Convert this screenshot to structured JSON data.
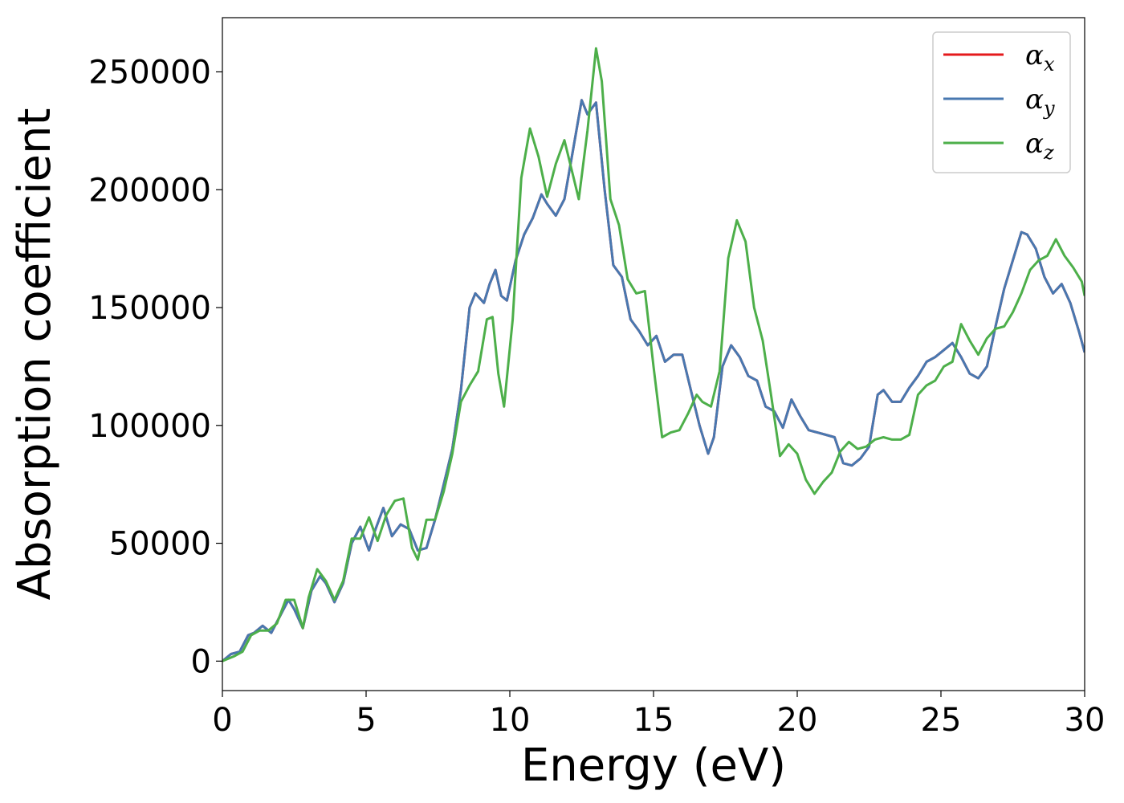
{
  "chart_data": {
    "type": "line",
    "xlabel": "Energy (eV)",
    "ylabel": "Absorption coefficient",
    "xlim": [
      0,
      30
    ],
    "ylim": [
      -12500,
      273000
    ],
    "xticks": [
      0,
      5,
      10,
      15,
      20,
      25,
      30
    ],
    "xtick_labels": [
      "0",
      "5",
      "10",
      "15",
      "20",
      "25",
      "30"
    ],
    "yticks": [
      0,
      50000,
      100000,
      150000,
      200000,
      250000
    ],
    "ytick_labels": [
      "0",
      "50000",
      "100000",
      "150000",
      "200000",
      "250000"
    ],
    "grid": false,
    "legend_position": "top-right",
    "series": [
      {
        "name": "α",
        "subscript": "x",
        "color": "#e41a1c",
        "x": [
          0,
          0.3,
          0.6,
          0.9,
          1.1,
          1.4,
          1.7,
          2.0,
          2.3,
          2.5,
          2.8,
          3.1,
          3.4,
          3.6,
          3.9,
          4.2,
          4.5,
          4.8,
          5.1,
          5.3,
          5.6,
          5.9,
          6.2,
          6.5,
          6.8,
          7.1,
          7.4,
          7.7,
          8.0,
          8.3,
          8.6,
          8.8,
          9.1,
          9.3,
          9.5,
          9.7,
          9.9,
          10.2,
          10.5,
          10.8,
          11.1,
          11.3,
          11.6,
          11.9,
          12.2,
          12.5,
          12.7,
          13.0,
          13.3,
          13.6,
          13.9,
          14.2,
          14.5,
          14.8,
          15.1,
          15.4,
          15.7,
          16.0,
          16.3,
          16.6,
          16.9,
          17.1,
          17.4,
          17.7,
          18.0,
          18.3,
          18.6,
          18.9,
          19.2,
          19.5,
          19.8,
          20.1,
          20.4,
          20.7,
          21.0,
          21.3,
          21.6,
          21.9,
          22.2,
          22.5,
          22.8,
          23.0,
          23.3,
          23.6,
          23.9,
          24.2,
          24.5,
          24.8,
          25.1,
          25.4,
          25.7,
          26.0,
          26.3,
          26.6,
          26.9,
          27.2,
          27.5,
          27.8,
          28.0,
          28.3,
          28.6,
          28.9,
          29.2,
          29.5,
          29.8,
          30.0
        ],
        "y": [
          0,
          3000,
          4000,
          11000,
          12000,
          15000,
          12000,
          19000,
          26000,
          22000,
          14000,
          30000,
          36000,
          33000,
          25000,
          33000,
          50000,
          57000,
          47000,
          55000,
          65000,
          53000,
          58000,
          56000,
          47000,
          48000,
          60000,
          75000,
          90000,
          115000,
          150000,
          156000,
          152000,
          160000,
          166000,
          155000,
          153000,
          170000,
          181000,
          188000,
          198000,
          194000,
          189000,
          196000,
          217000,
          238000,
          232000,
          237000,
          200000,
          168000,
          163000,
          145000,
          140000,
          134000,
          138000,
          127000,
          130000,
          130000,
          115000,
          100000,
          88000,
          95000,
          125000,
          134000,
          129000,
          121000,
          119000,
          108000,
          106000,
          99000,
          111000,
          104000,
          98000,
          97000,
          96000,
          95000,
          84000,
          83000,
          86000,
          91000,
          113000,
          115000,
          110000,
          110000,
          116000,
          121000,
          127000,
          129000,
          132000,
          135000,
          129000,
          122000,
          120000,
          125000,
          142000,
          158000,
          170000,
          182000,
          181000,
          175000,
          163000,
          156000,
          160000,
          152000,
          140000,
          131000
        ]
      },
      {
        "name": "α",
        "subscript": "y",
        "color": "#4878b0",
        "x": [
          0,
          0.3,
          0.6,
          0.9,
          1.1,
          1.4,
          1.7,
          2.0,
          2.3,
          2.5,
          2.8,
          3.1,
          3.4,
          3.6,
          3.9,
          4.2,
          4.5,
          4.8,
          5.1,
          5.3,
          5.6,
          5.9,
          6.2,
          6.5,
          6.8,
          7.1,
          7.4,
          7.7,
          8.0,
          8.3,
          8.6,
          8.8,
          9.1,
          9.3,
          9.5,
          9.7,
          9.9,
          10.2,
          10.5,
          10.8,
          11.1,
          11.3,
          11.6,
          11.9,
          12.2,
          12.5,
          12.7,
          13.0,
          13.3,
          13.6,
          13.9,
          14.2,
          14.5,
          14.8,
          15.1,
          15.4,
          15.7,
          16.0,
          16.3,
          16.6,
          16.9,
          17.1,
          17.4,
          17.7,
          18.0,
          18.3,
          18.6,
          18.9,
          19.2,
          19.5,
          19.8,
          20.1,
          20.4,
          20.7,
          21.0,
          21.3,
          21.6,
          21.9,
          22.2,
          22.5,
          22.8,
          23.0,
          23.3,
          23.6,
          23.9,
          24.2,
          24.5,
          24.8,
          25.1,
          25.4,
          25.7,
          26.0,
          26.3,
          26.6,
          26.9,
          27.2,
          27.5,
          27.8,
          28.0,
          28.3,
          28.6,
          28.9,
          29.2,
          29.5,
          29.8,
          30.0
        ],
        "y": [
          0,
          3000,
          4000,
          11000,
          12000,
          15000,
          12000,
          19000,
          26000,
          22000,
          14000,
          30000,
          36000,
          33000,
          25000,
          33000,
          50000,
          57000,
          47000,
          55000,
          65000,
          53000,
          58000,
          56000,
          47000,
          48000,
          60000,
          75000,
          90000,
          115000,
          150000,
          156000,
          152000,
          160000,
          166000,
          155000,
          153000,
          170000,
          181000,
          188000,
          198000,
          194000,
          189000,
          196000,
          217000,
          238000,
          232000,
          237000,
          200000,
          168000,
          163000,
          145000,
          140000,
          134000,
          138000,
          127000,
          130000,
          130000,
          115000,
          100000,
          88000,
          95000,
          125000,
          134000,
          129000,
          121000,
          119000,
          108000,
          106000,
          99000,
          111000,
          104000,
          98000,
          97000,
          96000,
          95000,
          84000,
          83000,
          86000,
          91000,
          113000,
          115000,
          110000,
          110000,
          116000,
          121000,
          127000,
          129000,
          132000,
          135000,
          129000,
          122000,
          120000,
          125000,
          142000,
          158000,
          170000,
          182000,
          181000,
          175000,
          163000,
          156000,
          160000,
          152000,
          140000,
          131000
        ]
      },
      {
        "name": "α",
        "subscript": "z",
        "color": "#4daf4a",
        "x": [
          0,
          0.4,
          0.7,
          1.0,
          1.3,
          1.6,
          1.9,
          2.2,
          2.5,
          2.8,
          3.0,
          3.3,
          3.6,
          3.9,
          4.2,
          4.5,
          4.8,
          5.1,
          5.4,
          5.7,
          6.0,
          6.3,
          6.6,
          6.8,
          7.1,
          7.4,
          7.7,
          8.0,
          8.3,
          8.6,
          8.9,
          9.2,
          9.4,
          9.6,
          9.8,
          10.1,
          10.4,
          10.7,
          11.0,
          11.3,
          11.6,
          11.9,
          12.2,
          12.4,
          12.7,
          13.0,
          13.2,
          13.5,
          13.8,
          14.1,
          14.4,
          14.7,
          15.0,
          15.3,
          15.6,
          15.9,
          16.2,
          16.5,
          16.7,
          17.0,
          17.3,
          17.6,
          17.9,
          18.2,
          18.5,
          18.8,
          19.1,
          19.4,
          19.7,
          20.0,
          20.3,
          20.6,
          20.9,
          21.2,
          21.5,
          21.8,
          22.1,
          22.4,
          22.7,
          23.0,
          23.3,
          23.6,
          23.9,
          24.2,
          24.5,
          24.8,
          25.1,
          25.4,
          25.7,
          26.0,
          26.3,
          26.6,
          26.9,
          27.2,
          27.5,
          27.8,
          28.1,
          28.4,
          28.7,
          29.0,
          29.3,
          29.6,
          29.9,
          30.0
        ],
        "y": [
          0,
          2000,
          4000,
          11000,
          13000,
          13000,
          16000,
          26000,
          26000,
          14000,
          27000,
          39000,
          34000,
          26000,
          34000,
          52000,
          52000,
          61000,
          51000,
          62000,
          68000,
          69000,
          48000,
          43000,
          60000,
          60000,
          72000,
          88000,
          110000,
          117000,
          123000,
          145000,
          146000,
          122000,
          108000,
          145000,
          205000,
          226000,
          214000,
          197000,
          211000,
          221000,
          206000,
          196000,
          225000,
          260000,
          246000,
          196000,
          185000,
          162000,
          156000,
          157000,
          125000,
          95000,
          97000,
          98000,
          105000,
          113000,
          110000,
          108000,
          123000,
          171000,
          187000,
          178000,
          150000,
          136000,
          112000,
          87000,
          92000,
          88000,
          77000,
          71000,
          76000,
          80000,
          89000,
          93000,
          90000,
          91000,
          94000,
          95000,
          94000,
          94000,
          96000,
          113000,
          117000,
          119000,
          125000,
          127000,
          143000,
          136000,
          130000,
          137000,
          141000,
          142000,
          148000,
          156000,
          166000,
          170000,
          172000,
          179000,
          172000,
          167000,
          161000,
          155000
        ]
      }
    ]
  }
}
